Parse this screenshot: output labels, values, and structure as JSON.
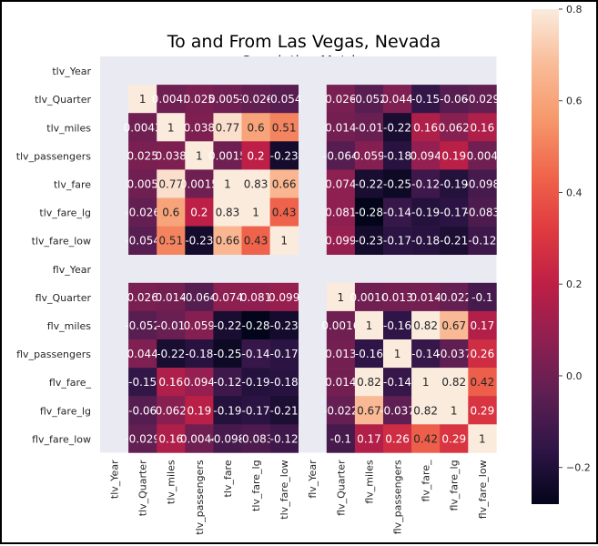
{
  "chart_data": {
    "type": "heatmap",
    "title": "To and From Las Vegas, Nevada",
    "subtitle": "Correlation Matrix",
    "row_labels": [
      "tlv_Year",
      "tlv_Quarter",
      "tlv_miles",
      "tlv_passengers",
      "tlv_fare",
      "tlv_fare_lg",
      "tlv_fare_low",
      "flv_Year",
      "flv_Quarter",
      "flv_miles",
      "flv_passengers",
      "flv_fare_",
      "flv_fare_lg",
      "flv_fare_low"
    ],
    "col_labels": [
      "tlv_Year",
      "tlv_Quarter",
      "tlv_miles",
      "tlv_passengers",
      "tlv_fare",
      "tlv_fare_lg",
      "tlv_fare_low",
      "flv_Year",
      "flv_Quarter",
      "flv_miles",
      "flv_passengers",
      "flv_fare_",
      "flv_fare_lg",
      "flv_fare_low"
    ],
    "values": [
      [
        null,
        null,
        null,
        null,
        null,
        null,
        null,
        null,
        null,
        null,
        null,
        null,
        null,
        null
      ],
      [
        null,
        1,
        0.0043,
        0.025,
        0.0051,
        -0.026,
        -0.054,
        null,
        0.026,
        -0.052,
        0.044,
        -0.15,
        -0.06,
        -0.029
      ],
      [
        null,
        0.0043,
        1,
        0.038,
        0.77,
        0.6,
        0.51,
        null,
        0.014,
        -0.01,
        -0.22,
        0.16,
        0.062,
        0.16
      ],
      [
        null,
        0.025,
        0.038,
        1,
        0.0015,
        0.2,
        -0.23,
        null,
        -0.064,
        0.059,
        -0.18,
        0.094,
        0.19,
        0.0044
      ],
      [
        null,
        0.005,
        0.77,
        0.0015,
        1,
        0.83,
        0.66,
        null,
        0.074,
        -0.22,
        -0.25,
        -0.12,
        -0.19,
        -0.098
      ],
      [
        null,
        -0.026,
        0.6,
        0.2,
        0.83,
        1,
        0.43,
        null,
        0.081,
        -0.28,
        -0.14,
        -0.19,
        -0.17,
        -0.083
      ],
      [
        null,
        -0.054,
        0.51,
        -0.23,
        0.66,
        0.43,
        1,
        null,
        0.099,
        -0.23,
        -0.17,
        -0.18,
        -0.21,
        -0.12
      ],
      [
        null,
        null,
        null,
        null,
        null,
        null,
        null,
        null,
        null,
        null,
        null,
        null,
        null,
        null
      ],
      [
        null,
        0.026,
        0.014,
        -0.064,
        0.074,
        0.081,
        0.099,
        null,
        1,
        0.0016,
        0.013,
        0.014,
        -0.022,
        -0.1
      ],
      [
        null,
        -0.052,
        -0.01,
        0.059,
        -0.22,
        -0.28,
        -0.23,
        null,
        0.0016,
        1,
        -0.16,
        0.82,
        0.67,
        0.17
      ],
      [
        null,
        0.044,
        -0.22,
        -0.18,
        -0.25,
        -0.14,
        -0.17,
        null,
        0.013,
        -0.16,
        1,
        -0.14,
        -0.037,
        0.26
      ],
      [
        null,
        -0.15,
        0.16,
        0.094,
        -0.12,
        -0.19,
        -0.18,
        null,
        0.014,
        0.82,
        -0.14,
        1,
        0.82,
        0.42
      ],
      [
        null,
        -0.06,
        0.062,
        0.19,
        -0.19,
        -0.17,
        -0.21,
        null,
        -0.022,
        0.67,
        -0.037,
        0.82,
        1,
        0.29
      ],
      [
        null,
        -0.029,
        0.16,
        0.0044,
        -0.098,
        -0.083,
        -0.12,
        null,
        -0.1,
        0.17,
        0.26,
        0.42,
        0.29,
        1
      ]
    ],
    "cell_labels": [
      [
        null,
        null,
        null,
        null,
        null,
        null,
        null,
        null,
        null,
        null,
        null,
        null,
        null,
        null
      ],
      [
        null,
        "1",
        "0.0043",
        "0.025",
        "0.0051",
        "-0.026",
        "-0.054",
        null,
        "0.026",
        "-0.052",
        "0.044",
        "-0.15",
        "-0.06",
        "-0.029"
      ],
      [
        null,
        "0.0043",
        "1",
        "0.038",
        "0.77",
        "0.6",
        "0.51",
        null,
        "0.014",
        "-0.01",
        "-0.22",
        "0.16",
        "0.062",
        "0.16"
      ],
      [
        null,
        "0.025",
        "0.038",
        "1",
        "0.0015",
        "0.2",
        "-0.23",
        null,
        "-0.064",
        "0.059",
        "-0.18",
        "0.094",
        "0.19",
        "0.004"
      ],
      [
        null,
        "0.005",
        "0.77",
        "0.0015",
        "1",
        "0.83",
        "0.66",
        null,
        "0.074",
        "-0.22",
        "-0.25",
        "-0.12",
        "-0.19",
        "-0.098"
      ],
      [
        null,
        "-0.026",
        "0.6",
        "0.2",
        "0.83",
        "1",
        "0.43",
        null,
        "0.081",
        "-0.28",
        "-0.14",
        "-0.19",
        "-0.17",
        "-0.083"
      ],
      [
        null,
        "-0.054",
        "0.51",
        "-0.23",
        "0.66",
        "0.43",
        "1",
        null,
        "0.099",
        "-0.23",
        "-0.17",
        "-0.18",
        "-0.21",
        "-0.12"
      ],
      [
        null,
        null,
        null,
        null,
        null,
        null,
        null,
        null,
        null,
        null,
        null,
        null,
        null,
        null
      ],
      [
        null,
        "0.026",
        "0.014",
        "-0.064",
        "0.074",
        "0.081",
        "0.099",
        null,
        "1",
        "0.0016",
        "0.013",
        "0.014",
        "-0.022",
        "-0.1"
      ],
      [
        null,
        "-0.052",
        "-0.01",
        "0.059",
        "-0.22",
        "-0.28",
        "-0.23",
        null,
        "0.0016",
        "1",
        "-0.16",
        "0.82",
        "0.67",
        "0.17"
      ],
      [
        null,
        "0.044",
        "-0.22",
        "-0.18",
        "-0.25",
        "-0.14",
        "-0.17",
        null,
        "0.013",
        "-0.16",
        "1",
        "-0.14",
        "-0.037",
        "0.26"
      ],
      [
        null,
        "-0.15",
        "0.16",
        "0.094",
        "-0.12",
        "-0.19",
        "-0.18",
        null,
        "0.014",
        "0.82",
        "-0.14",
        "1",
        "0.82",
        "0.42"
      ],
      [
        null,
        "-0.06",
        "0.062",
        "0.19",
        "-0.19",
        "-0.17",
        "-0.21",
        null,
        "-0.022",
        "0.67",
        "-0.037",
        "0.82",
        "1",
        "0.29"
      ],
      [
        null,
        "-0.029",
        "0.16",
        "0.0044",
        "-0.098",
        "-0.083",
        "-0.12",
        null,
        "-0.1",
        "0.17",
        "0.26",
        "0.42",
        "0.29",
        "1"
      ]
    ],
    "colorbar": {
      "min": -0.28,
      "max": 0.8,
      "ticks": [
        "0.8",
        "0.6",
        "0.4",
        "0.2",
        "0.0",
        "−0.2"
      ],
      "tick_values": [
        0.8,
        0.6,
        0.4,
        0.2,
        0.0,
        -0.2
      ]
    },
    "colormap": [
      "#03051a",
      "#2f1547",
      "#5e1f52",
      "#8f1f51",
      "#be1f46",
      "#e03b3f",
      "#f0664c",
      "#f6986c",
      "#f9bc98",
      "#faebdd"
    ],
    "missing_color": "#eaeaf2"
  }
}
